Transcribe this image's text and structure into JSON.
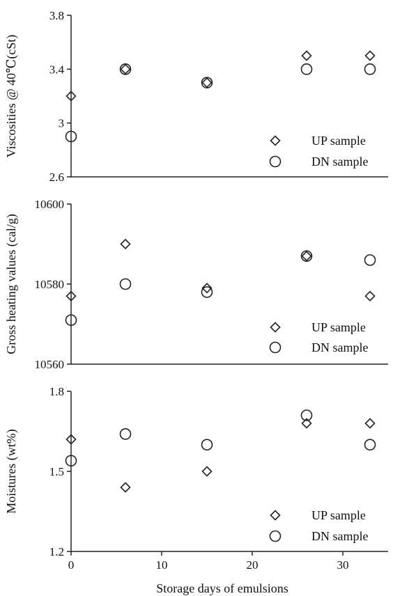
{
  "chart_data": [
    {
      "type": "scatter",
      "ylabel": "Viscosities @ 40℃(cSt)",
      "xlabel": "",
      "ylim": [
        2.6,
        3.8
      ],
      "xlim": [
        0,
        35
      ],
      "yticks": [
        "2.6",
        "3",
        "3.4",
        "3.8"
      ],
      "legend_position": "bottom-right",
      "series": [
        {
          "name": "UP sample",
          "marker": "diamond",
          "points": [
            {
              "x": 0,
              "y": 3.2
            },
            {
              "x": 6,
              "y": 3.4
            },
            {
              "x": 15,
              "y": 3.3
            },
            {
              "x": 26,
              "y": 3.5
            },
            {
              "x": 33,
              "y": 3.5
            }
          ]
        },
        {
          "name": "DN sample",
          "marker": "circle",
          "points": [
            {
              "x": 0,
              "y": 2.9
            },
            {
              "x": 6,
              "y": 3.4
            },
            {
              "x": 15,
              "y": 3.3
            },
            {
              "x": 26,
              "y": 3.4
            },
            {
              "x": 33,
              "y": 3.4
            }
          ]
        }
      ]
    },
    {
      "type": "scatter",
      "ylabel": "Gross heating values (cal/g)",
      "xlabel": "",
      "ylim": [
        10560,
        10600
      ],
      "xlim": [
        0,
        35
      ],
      "yticks": [
        "10560",
        "10580",
        "10600"
      ],
      "legend_position": "bottom-right",
      "series": [
        {
          "name": "UP sample",
          "marker": "diamond",
          "points": [
            {
              "x": 0,
              "y": 10577
            },
            {
              "x": 6,
              "y": 10590
            },
            {
              "x": 15,
              "y": 10579
            },
            {
              "x": 26,
              "y": 10587
            },
            {
              "x": 33,
              "y": 10577
            }
          ]
        },
        {
          "name": "DN sample",
          "marker": "circle",
          "points": [
            {
              "x": 0,
              "y": 10571
            },
            {
              "x": 6,
              "y": 10580
            },
            {
              "x": 15,
              "y": 10578
            },
            {
              "x": 26,
              "y": 10587
            },
            {
              "x": 33,
              "y": 10586
            }
          ]
        }
      ]
    },
    {
      "type": "scatter",
      "ylabel": "Moistures (wt%)",
      "xlabel": "Storage days of emulsions",
      "ylim": [
        1.2,
        1.8
      ],
      "xlim": [
        0,
        35
      ],
      "yticks": [
        "1.2",
        "1.5",
        "1.8"
      ],
      "xticks": [
        "0",
        "10",
        "20",
        "30"
      ],
      "legend_position": "bottom-right",
      "series": [
        {
          "name": "UP sample",
          "marker": "diamond",
          "points": [
            {
              "x": 0,
              "y": 1.62
            },
            {
              "x": 6,
              "y": 1.44
            },
            {
              "x": 15,
              "y": 1.5
            },
            {
              "x": 26,
              "y": 1.68
            },
            {
              "x": 33,
              "y": 1.68
            }
          ]
        },
        {
          "name": "DN sample",
          "marker": "circle",
          "points": [
            {
              "x": 0,
              "y": 1.54
            },
            {
              "x": 6,
              "y": 1.64
            },
            {
              "x": 15,
              "y": 1.6
            },
            {
              "x": 26,
              "y": 1.71
            },
            {
              "x": 33,
              "y": 1.6
            }
          ]
        }
      ]
    }
  ]
}
